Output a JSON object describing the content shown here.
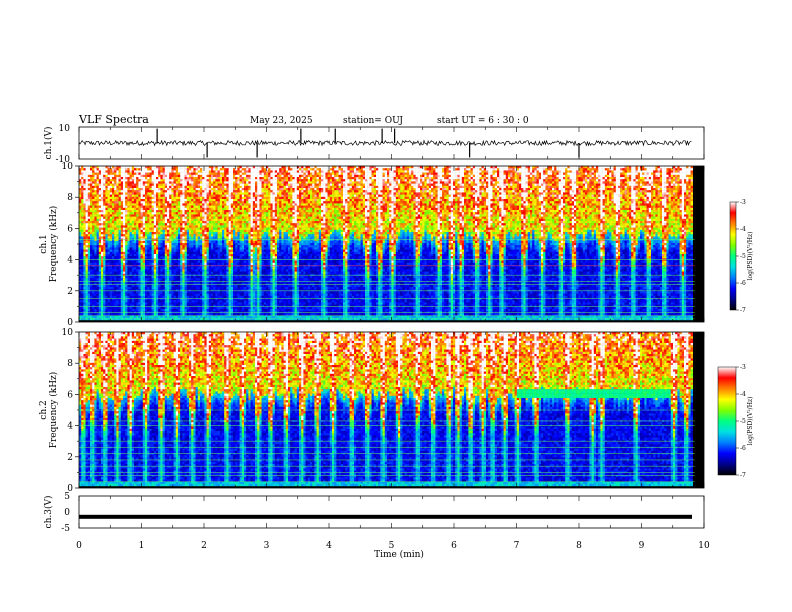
{
  "header": {
    "title": "VLF Spectra",
    "date": "May 23, 2025",
    "station": "station= OUJ",
    "start": "start  UT  =   6  : 30 : 0"
  },
  "panels": {
    "ch1_wave": {
      "ylabel": "ch.1(V)",
      "ticks": [
        "10",
        "-10"
      ]
    },
    "ch1_spec": {
      "ylabel_top": "ch.1",
      "ylabel_bottom": "Frequency (kHz)",
      "ticks": [
        "0",
        "2",
        "4",
        "6",
        "8",
        "10"
      ]
    },
    "ch2_spec": {
      "ylabel_top": "ch.2",
      "ylabel_bottom": "Frequency (kHz)",
      "ticks": [
        "0",
        "2",
        "4",
        "6",
        "8",
        "10"
      ]
    },
    "ch3_wave": {
      "ylabel": "ch.3(V)",
      "ticks": [
        "5",
        "0",
        "-5"
      ]
    }
  },
  "colorbar": {
    "label": "log(PSD)(V²/Hz)",
    "ticks": [
      "-3",
      "-4",
      "-5",
      "-6",
      "-7"
    ],
    "range": [
      -7,
      -3
    ],
    "colors": [
      "#000000",
      "#00008b",
      "#0000ff",
      "#0080ff",
      "#00e0e0",
      "#00ff80",
      "#80ff00",
      "#ffff00",
      "#ff8000",
      "#ff0000",
      "#ffffff"
    ]
  },
  "xaxis": {
    "label": "Time (min)",
    "ticks": [
      "0",
      "1",
      "2",
      "3",
      "4",
      "5",
      "6",
      "7",
      "8",
      "9",
      "10"
    ]
  },
  "chart_data": [
    {
      "type": "line",
      "name": "ch.1 waveform",
      "ylabel": "ch.1(V)",
      "ylim": [
        -10,
        10
      ],
      "xlim": [
        0,
        10
      ],
      "baseline_v": 0,
      "noise_amplitude_v": 1.5,
      "spikes_min": [
        1.25,
        2.05,
        2.85,
        3.55,
        4.1,
        4.85,
        5.05,
        6.25,
        8.0
      ]
    },
    {
      "type": "heatmap",
      "name": "ch.1 spectrogram",
      "ylabel": "Frequency (kHz)",
      "ylim": [
        0,
        10
      ],
      "xlim": [
        0,
        9.85
      ],
      "zlim": [
        -7,
        -3
      ],
      "cutoff_khz": 5.5,
      "hlines_khz": [
        0.2,
        0.4,
        0.6,
        1.0,
        1.5,
        2.0,
        2.4,
        2.6,
        3.0,
        3.6,
        4.0,
        5.3
      ],
      "bursts_min": [
        0.1,
        0.35,
        0.7,
        1.0,
        1.2,
        1.4,
        1.65,
        2.0,
        2.4,
        2.75,
        2.85,
        3.1,
        3.45,
        3.9,
        4.25,
        4.6,
        4.8,
        5.0,
        5.4,
        5.75,
        5.95,
        6.1,
        6.35,
        6.55,
        6.75,
        7.1,
        7.4,
        7.7,
        7.9,
        8.35,
        8.6,
        8.85,
        9.1,
        9.35,
        9.65
      ]
    },
    {
      "type": "heatmap",
      "name": "ch.2 spectrogram",
      "ylabel": "Frequency (kHz)",
      "ylim": [
        0,
        10
      ],
      "xlim": [
        0,
        9.85
      ],
      "zlim": [
        -7,
        -3
      ],
      "cutoff_khz": 6.0,
      "hlines_khz": [
        0.4,
        0.8,
        1.0,
        1.4,
        1.8,
        2.2,
        2.6,
        3.0,
        4.0,
        4.3,
        5.0
      ],
      "band": {
        "t_start_min": 7.0,
        "t_end_min": 9.45,
        "f_khz": 6.0
      },
      "bursts_min": [
        0.05,
        0.2,
        0.4,
        0.6,
        0.8,
        1.05,
        1.3,
        1.55,
        1.8,
        2.05,
        2.35,
        2.6,
        2.85,
        3.05,
        3.3,
        3.55,
        3.8,
        4.05,
        4.35,
        4.6,
        4.85,
        5.1,
        5.4,
        5.65,
        5.9,
        6.05,
        6.25,
        6.45,
        6.6,
        6.8,
        7.0,
        7.3,
        7.8,
        8.2,
        8.35,
        8.9,
        9.5,
        9.7
      ]
    },
    {
      "type": "line",
      "name": "ch.3 waveform",
      "ylabel": "ch.3(V)",
      "ylim": [
        -5,
        5
      ],
      "xlim": [
        0,
        10
      ],
      "baseline_v": -1.5
    }
  ]
}
